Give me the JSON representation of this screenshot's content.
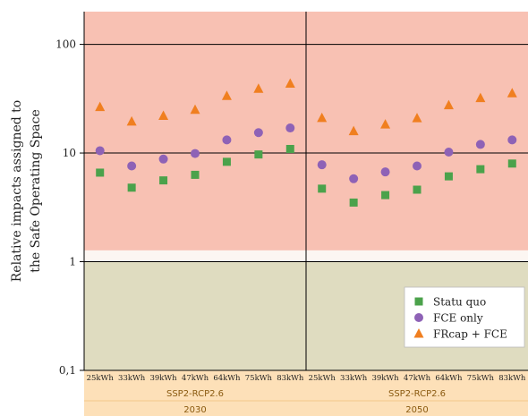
{
  "chart_data": {
    "type": "scatter",
    "title": "",
    "ylabel_lines": [
      "Relative impacts assigned to",
      "the Safe Operating Space"
    ],
    "yscale": "log",
    "ylim": [
      0.1,
      200
    ],
    "yticks": [
      {
        "value": 100,
        "label": "100"
      },
      {
        "value": 10,
        "label": "10"
      },
      {
        "value": 1,
        "label": "1"
      },
      {
        "value": 0.1,
        "label": "0,1"
      }
    ],
    "categories": [
      "25kWh",
      "33kWh",
      "39kWh",
      "47kWh",
      "64kWh",
      "75kWh",
      "83kWh"
    ],
    "panels": [
      {
        "scenario": "SSP2-RCP2.6",
        "year": "2030"
      },
      {
        "scenario": "SSP2-RCP2.6",
        "year": "2050"
      }
    ],
    "background_bands": [
      {
        "from": 1.27,
        "to": 200,
        "color": "#f8c1b3"
      },
      {
        "from": 1,
        "to": 1.27,
        "color": "#fcf6f2"
      },
      {
        "from": 0.1,
        "to": 1,
        "color": "#dfdcc0"
      }
    ],
    "grid_lines": [
      100,
      10,
      1
    ],
    "series": [
      {
        "name": "Statu quo",
        "marker": "square",
        "color": "#4ba24b",
        "values_2030": [
          6.6,
          4.8,
          5.6,
          6.3,
          8.3,
          9.7,
          10.9
        ],
        "values_2050": [
          4.7,
          3.5,
          4.1,
          4.6,
          6.1,
          7.1,
          8.0
        ]
      },
      {
        "name": "FCE only",
        "marker": "circle",
        "color": "#8e62b6",
        "values_2030": [
          10.5,
          7.6,
          8.8,
          9.9,
          13.2,
          15.4,
          17.0
        ],
        "values_2050": [
          7.8,
          5.8,
          6.7,
          7.6,
          10.2,
          12.0,
          13.2
        ]
      },
      {
        "name": "FRcap  + FCE",
        "marker": "triangle",
        "color": "#f07f20",
        "values_2030": [
          26.5,
          19.5,
          22.0,
          25.0,
          33.5,
          39.0,
          43.5
        ],
        "values_2050": [
          21.0,
          15.9,
          18.3,
          20.9,
          27.5,
          32.0,
          35.5
        ]
      }
    ],
    "legend_position": "bottom-right",
    "xaxis_band_color": "#fde0b8",
    "xaxis_label_color": "#8a5a10"
  }
}
